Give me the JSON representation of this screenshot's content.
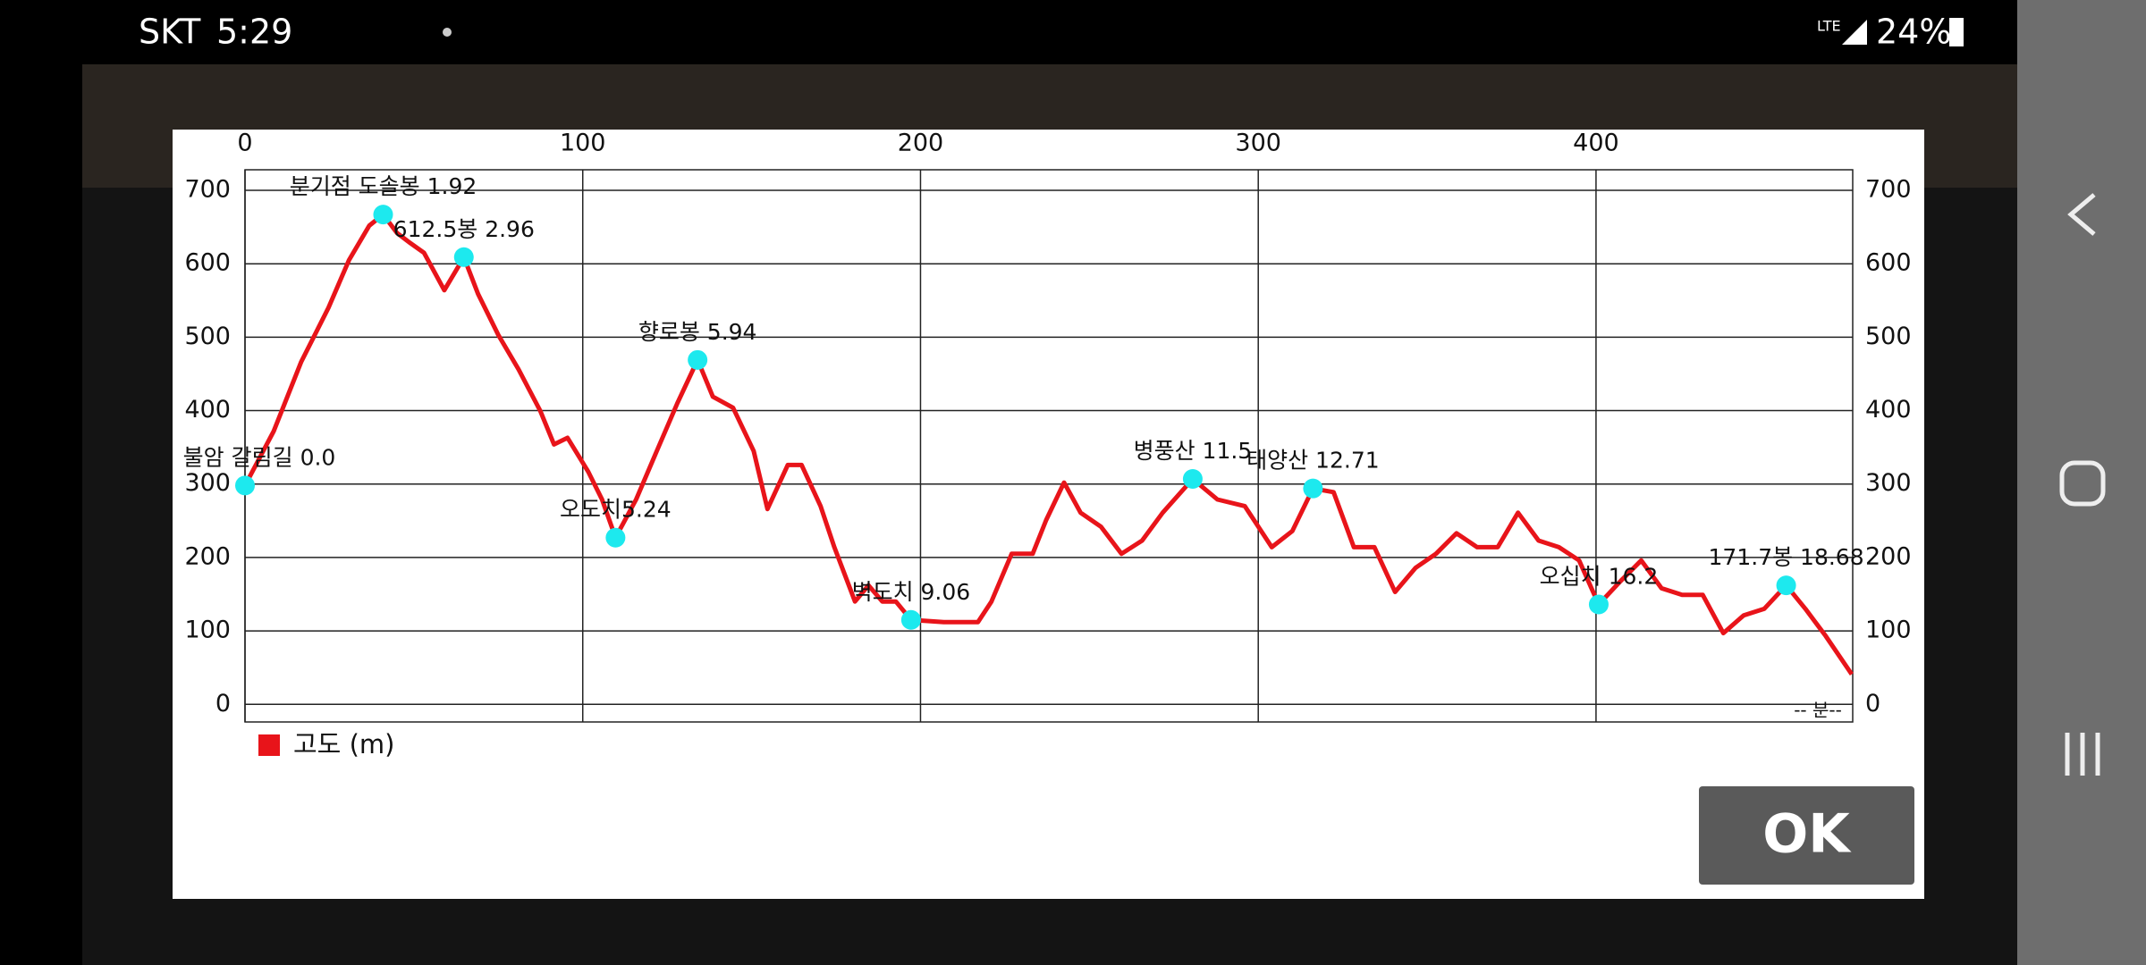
{
  "status_bar": {
    "carrier": "SKT",
    "time": "5:29",
    "network": "LTE",
    "battery": "24%"
  },
  "dialog": {
    "chart_data": {
      "type": "line",
      "x": [
        0,
        8.5,
        16.6,
        24.7,
        30.8,
        36.8,
        40.9,
        45,
        49,
        53,
        59,
        64.8,
        69,
        75,
        81,
        87.4,
        91.5,
        95.5,
        101.6,
        105.7,
        109.7,
        115.8,
        121.9,
        128,
        134,
        138.5,
        144.5,
        150.6,
        154.7,
        160.7,
        164.8,
        170.4,
        174.5,
        180.6,
        184.6,
        188.7,
        192.7,
        197.2,
        206.9,
        217,
        221,
        227,
        233.2,
        237.2,
        242.5,
        247.4,
        253.4,
        259.5,
        265.6,
        271.7,
        280.6,
        287.9,
        296,
        304,
        310.1,
        316.2,
        322.3,
        328.3,
        334.4,
        340.5,
        346.6,
        352.6,
        358.7,
        364.8,
        370.9,
        376.9,
        383,
        389,
        395,
        400.8,
        407.3,
        413.4,
        419.4,
        425.5,
        431.6,
        437.7,
        443.7,
        449.8,
        456.3,
        462,
        468,
        475.7
      ],
      "series": [
        {
          "name": "고도 (m)",
          "color": "#e8141a",
          "values": [
            298,
            372,
            466,
            540,
            605,
            652,
            667,
            642,
            628,
            615,
            564,
            609,
            559,
            503,
            456,
            400,
            354,
            363,
            317,
            279,
            227,
            279,
            345,
            410,
            469,
            419,
            404,
            345,
            266,
            326,
            326,
            270,
            214,
            140,
            162,
            140,
            140,
            115,
            112,
            112,
            140,
            205,
            205,
            251,
            302,
            261,
            242,
            205,
            223,
            261,
            307,
            279,
            270,
            214,
            236,
            294,
            289,
            214,
            214,
            153,
            186,
            205,
            233,
            214,
            214,
            261,
            223,
            214,
            196,
            136,
            168,
            196,
            158,
            149,
            149,
            97,
            121,
            130,
            162,
            130,
            93,
            41
          ]
        }
      ],
      "markers": [
        {
          "label": "불암 갈림길 0.0",
          "x": 0,
          "y": 298
        },
        {
          "label": "분기점 도솔봉 1.92",
          "x": 40.9,
          "y": 667
        },
        {
          "label": "612.5봉 2.96",
          "x": 64.8,
          "y": 609
        },
        {
          "label": "오도치5.24",
          "x": 109.7,
          "y": 227
        },
        {
          "label": "향로봉 5.94",
          "x": 134,
          "y": 469
        },
        {
          "label": "벽도치 9.06",
          "x": 197.2,
          "y": 115
        },
        {
          "label": "병풍산 11.5",
          "x": 280.6,
          "y": 307
        },
        {
          "label": "태양산 12.71",
          "x": 316.2,
          "y": 294
        },
        {
          "label": "오십치 16.2",
          "x": 400.8,
          "y": 136
        },
        {
          "label": "171.7봉 18.68",
          "x": 456.3,
          "y": 162
        }
      ],
      "marker_color": "#1de9ee",
      "xlim": [
        0,
        476
      ],
      "xticks": [
        0,
        100,
        200,
        300,
        400
      ],
      "ylim": [
        -24,
        728
      ],
      "yticks": [
        0,
        100,
        200,
        300,
        400,
        500,
        600,
        700
      ],
      "grid": true,
      "x_note": "-- 분--"
    },
    "ok_button": "OK"
  }
}
